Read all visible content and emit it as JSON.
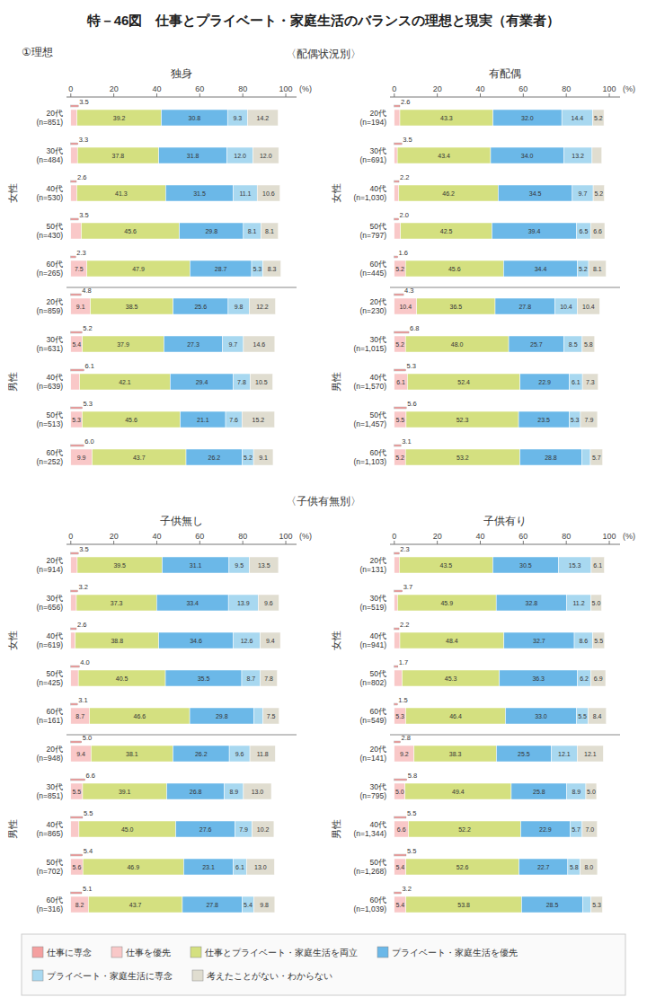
{
  "title": "特－46図　仕事とプライベート・家庭生活のバランスの理想と現実（有業者）",
  "subtitle": "①理想",
  "annotations": [
    "〈配偶状況別〉",
    "〈子供有無別〉"
  ],
  "chart_data": [
    {
      "type": "bar",
      "title": "独身",
      "orientation": "horizontal",
      "stacked": true,
      "data_labels": true,
      "grid": false,
      "legend": "bottom",
      "xlabel": "(%)",
      "xlim": [
        -2,
        105
      ],
      "xticks": [
        0,
        20,
        40,
        60,
        80,
        100
      ],
      "categories": [
        "20代\n(n=851)",
        "30代\n(n=484)",
        "40代\n(n=530)",
        "50代\n(n=430)",
        "60代\n(n=265)",
        "20代\n(n=859)",
        "30代\n(n=631)",
        "40代\n(n=639)",
        "50代\n(n=513)",
        "60代\n(n=252)"
      ],
      "groups": [
        {
          "name": "女性",
          "size": 5
        },
        {
          "name": "男性",
          "size": 5
        }
      ],
      "series": [
        {
          "name": "仕事に専念",
          "type": "line",
          "color": "#f4a0a0",
          "values": [
            3.5,
            3.3,
            2.6,
            3.5,
            2.3,
            4.8,
            5.2,
            6.1,
            5.3,
            6.0
          ]
        },
        {
          "name": "仕事を優先",
          "color": "#f9c8c8",
          "values": [
            2.9,
            3.1,
            2.8,
            4.9,
            7.5,
            9.1,
            5.4,
            4.1,
            5.3,
            9.9
          ]
        },
        {
          "name": "仕事とプライベート・家庭生活を両立",
          "color": "#d4e080",
          "values": [
            39.2,
            37.8,
            41.3,
            45.6,
            47.9,
            38.5,
            37.9,
            42.1,
            45.6,
            43.7
          ]
        },
        {
          "name": "プライベート・家庭生活を優先",
          "color": "#6bb8e8",
          "values": [
            30.8,
            31.8,
            31.5,
            29.8,
            28.7,
            25.6,
            27.3,
            29.4,
            21.1,
            26.2
          ]
        },
        {
          "name": "プライベート・家庭生活に専念",
          "color": "#a8d8f0",
          "values": [
            9.3,
            12.0,
            11.1,
            8.1,
            5.3,
            9.8,
            9.7,
            7.8,
            7.6,
            5.2
          ]
        },
        {
          "name": "考えたことがない・わからない",
          "color": "#e0ddd0",
          "values": [
            14.2,
            12.0,
            10.6,
            8.1,
            8.3,
            12.2,
            14.6,
            10.5,
            15.2,
            9.1
          ]
        }
      ]
    },
    {
      "type": "bar",
      "title": "有配偶",
      "orientation": "horizontal",
      "stacked": true,
      "data_labels": true,
      "grid": false,
      "xlabel": "(%)",
      "xlim": [
        -2,
        105
      ],
      "xticks": [
        0,
        20,
        40,
        60,
        80,
        100
      ],
      "categories": [
        "20代\n(n=194)",
        "30代\n(n=691)",
        "40代\n(n=1,030)",
        "50代\n(n=797)",
        "60代\n(n=445)",
        "20代\n(n=230)",
        "30代\n(n=1,015)",
        "40代\n(n=1,570)",
        "50代\n(n=1,457)",
        "60代\n(n=1,103)"
      ],
      "groups": [
        {
          "name": "女性",
          "size": 5
        },
        {
          "name": "男性",
          "size": 5
        }
      ],
      "series": [
        {
          "name": "仕事に専念",
          "type": "line",
          "color": "#f4a0a0",
          "values": [
            2.6,
            3.5,
            2.2,
            2.0,
            1.6,
            4.3,
            6.8,
            5.3,
            5.6,
            3.1
          ]
        },
        {
          "name": "仕事を優先",
          "color": "#f9c8c8",
          "values": [
            2.6,
            1.4,
            2.1,
            2.9,
            5.2,
            10.4,
            5.2,
            6.1,
            5.5,
            5.2
          ]
        },
        {
          "name": "仕事とプライベート・家庭生活を両立",
          "color": "#d4e080",
          "values": [
            43.3,
            43.4,
            46.2,
            42.5,
            45.6,
            36.5,
            48.0,
            52.4,
            52.3,
            53.2
          ]
        },
        {
          "name": "プライベート・家庭生活を優先",
          "color": "#6bb8e8",
          "values": [
            32.0,
            34.0,
            34.5,
            39.4,
            34.4,
            27.8,
            25.7,
            22.9,
            23.5,
            28.8
          ]
        },
        {
          "name": "プライベート・家庭生活に専念",
          "color": "#a8d8f0",
          "values": [
            14.4,
            13.2,
            9.7,
            6.5,
            5.2,
            10.4,
            8.5,
            6.1,
            5.3,
            4.0
          ]
        },
        {
          "name": "考えたことがない・わからない",
          "color": "#e0ddd0",
          "values": [
            5.2,
            4.5,
            5.2,
            6.6,
            8.1,
            10.4,
            5.8,
            7.3,
            7.9,
            5.7
          ]
        }
      ]
    },
    {
      "type": "bar",
      "title": "子供無し",
      "orientation": "horizontal",
      "stacked": true,
      "data_labels": true,
      "grid": false,
      "xlabel": "(%)",
      "xlim": [
        -2,
        105
      ],
      "xticks": [
        0,
        20,
        40,
        60,
        80,
        100
      ],
      "categories": [
        "20代\n(n=914)",
        "30代\n(n=656)",
        "40代\n(n=619)",
        "50代\n(n=425)",
        "60代\n(n=161)",
        "20代\n(n=948)",
        "30代\n(n=851)",
        "40代\n(n=865)",
        "50代\n(n=702)",
        "60代\n(n=316)"
      ],
      "groups": [
        {
          "name": "女性",
          "size": 5
        },
        {
          "name": "男性",
          "size": 5
        }
      ],
      "series": [
        {
          "name": "仕事に専念",
          "type": "line",
          "color": "#f4a0a0",
          "values": [
            3.5,
            3.2,
            2.6,
            4.0,
            3.1,
            5.0,
            6.6,
            5.5,
            5.4,
            5.1
          ]
        },
        {
          "name": "仕事を優先",
          "color": "#f9c8c8",
          "values": [
            3.0,
            2.6,
            2.1,
            3.5,
            8.7,
            9.4,
            5.5,
            3.8,
            5.6,
            8.2
          ]
        },
        {
          "name": "仕事とプライベート・家庭生活を両立",
          "color": "#d4e080",
          "values": [
            39.5,
            37.3,
            38.8,
            40.5,
            46.6,
            38.1,
            39.1,
            45.0,
            46.9,
            43.7
          ]
        },
        {
          "name": "プライベート・家庭生活を優先",
          "color": "#6bb8e8",
          "values": [
            31.1,
            33.4,
            34.6,
            35.5,
            29.8,
            26.2,
            26.8,
            27.6,
            23.1,
            27.8
          ]
        },
        {
          "name": "プライベート・家庭生活に専念",
          "color": "#a8d8f0",
          "values": [
            9.5,
            13.9,
            12.6,
            8.7,
            4.3,
            9.6,
            8.9,
            7.9,
            6.1,
            5.4
          ]
        },
        {
          "name": "考えたことがない・わからない",
          "color": "#e0ddd0",
          "values": [
            13.5,
            9.6,
            9.4,
            7.8,
            7.5,
            11.8,
            13.0,
            10.2,
            13.0,
            9.8
          ]
        }
      ]
    },
    {
      "type": "bar",
      "title": "子供有り",
      "orientation": "horizontal",
      "stacked": true,
      "data_labels": true,
      "grid": false,
      "xlabel": "(%)",
      "xlim": [
        -2,
        105
      ],
      "xticks": [
        0,
        20,
        40,
        60,
        80,
        100
      ],
      "categories": [
        "20代\n(n=131)",
        "30代\n(n=519)",
        "40代\n(n=941)",
        "50代\n(n=802)",
        "60代\n(n=549)",
        "20代\n(n=141)",
        "30代\n(n=795)",
        "40代\n(n=1,344)",
        "50代\n(n=1,268)",
        "60代\n(n=1,039)"
      ],
      "groups": [
        {
          "name": "女性",
          "size": 5
        },
        {
          "name": "男性",
          "size": 5
        }
      ],
      "series": [
        {
          "name": "仕事に専念",
          "type": "line",
          "color": "#f4a0a0",
          "values": [
            2.3,
            3.7,
            2.2,
            1.7,
            1.5,
            2.8,
            5.8,
            5.5,
            5.5,
            3.2
          ]
        },
        {
          "name": "仕事を優先",
          "color": "#f9c8c8",
          "values": [
            2.3,
            1.5,
            2.6,
            3.6,
            5.3,
            9.2,
            5.0,
            6.6,
            5.4,
            5.4
          ]
        },
        {
          "name": "仕事とプライベート・家庭生活を両立",
          "color": "#d4e080",
          "values": [
            43.5,
            45.9,
            48.4,
            45.3,
            46.4,
            38.3,
            49.4,
            52.2,
            52.6,
            53.8
          ]
        },
        {
          "name": "プライベート・家庭生活を優先",
          "color": "#6bb8e8",
          "values": [
            30.5,
            32.8,
            32.7,
            36.3,
            33.0,
            25.5,
            25.8,
            22.9,
            22.7,
            28.5
          ]
        },
        {
          "name": "プライベート・家庭生活に専念",
          "color": "#a8d8f0",
          "values": [
            15.3,
            11.2,
            8.6,
            6.2,
            5.5,
            12.1,
            8.9,
            5.7,
            5.8,
            3.8
          ]
        },
        {
          "name": "考えたことがない・わからない",
          "color": "#e0ddd0",
          "values": [
            6.1,
            5.0,
            5.5,
            6.9,
            8.4,
            12.1,
            5.0,
            7.0,
            8.0,
            5.3
          ]
        }
      ]
    }
  ]
}
